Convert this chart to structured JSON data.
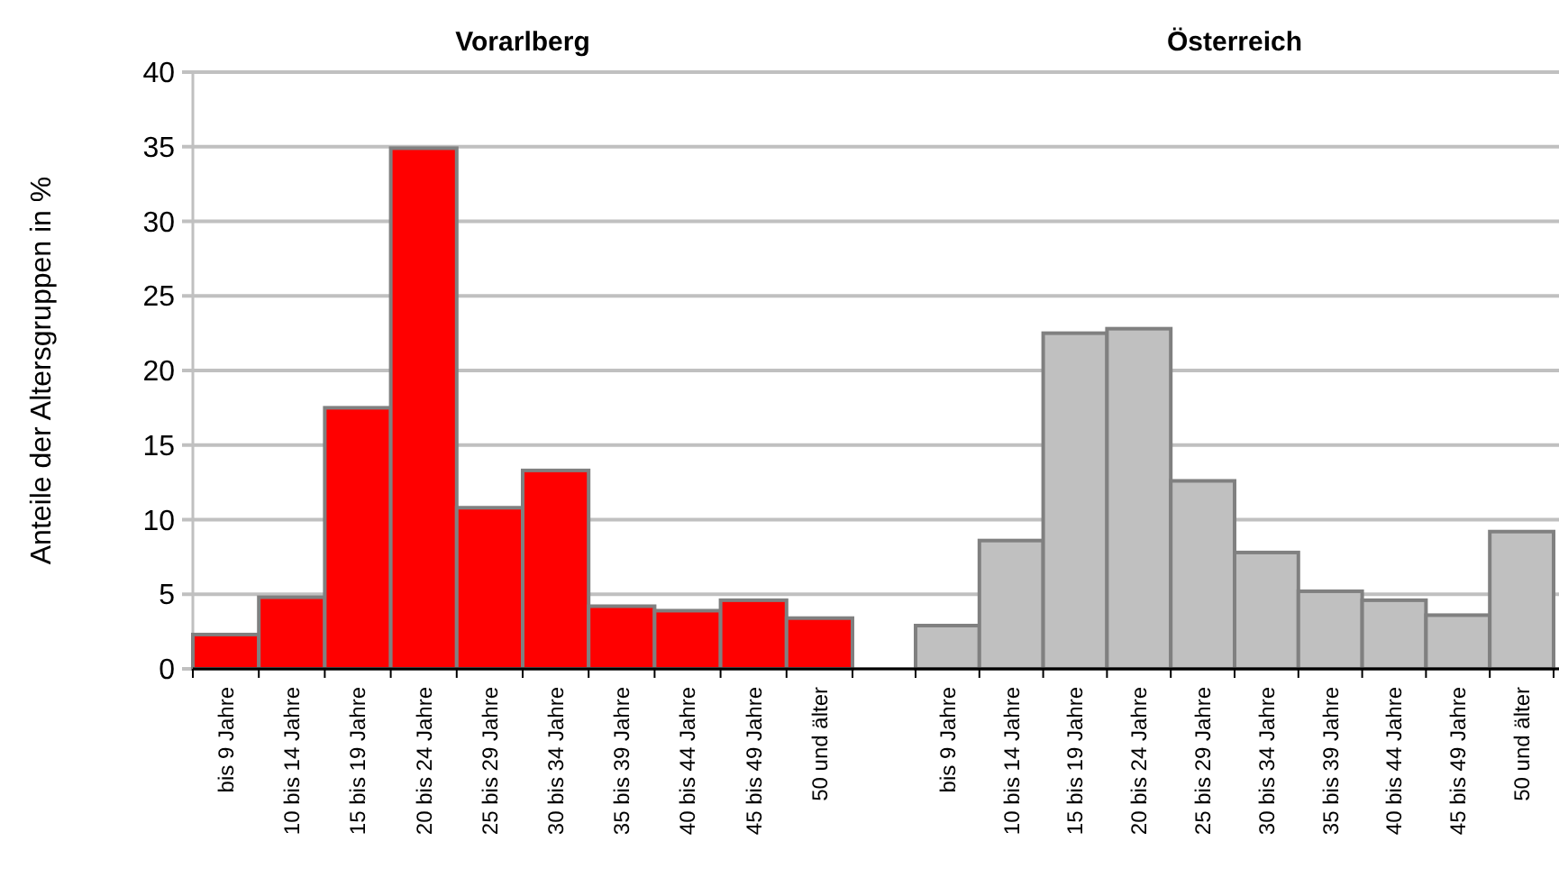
{
  "chart_data": [
    {
      "type": "bar",
      "title": "Vorarlberg",
      "ylabel": "Anteile der Altersgruppen in %",
      "categories": [
        "bis 9 Jahre",
        "10 bis 14 Jahre",
        "15 bis 19 Jahre",
        "20 bis 24 Jahre",
        "25 bis 29 Jahre",
        "30 bis 34 Jahre",
        "35 bis 39 Jahre",
        "40 bis 44 Jahre",
        "45 bis 49 Jahre",
        "50 und älter"
      ],
      "values": [
        2.3,
        4.8,
        17.5,
        34.9,
        10.8,
        13.3,
        4.2,
        3.9,
        4.6,
        3.4
      ],
      "color": "#ff0000",
      "ylim": [
        0,
        40
      ],
      "yticks": [
        0,
        5,
        10,
        15,
        20,
        25,
        30,
        35,
        40
      ],
      "grid": "y"
    },
    {
      "type": "bar",
      "title": "Österreich",
      "categories": [
        "bis 9 Jahre",
        "10 bis 14 Jahre",
        "15 bis 19 Jahre",
        "20 bis 24 Jahre",
        "25 bis 29 Jahre",
        "30 bis 34 Jahre",
        "35 bis 39 Jahre",
        "40 bis 44 Jahre",
        "45 bis 49 Jahre",
        "50 und älter"
      ],
      "values": [
        2.9,
        8.6,
        22.5,
        22.8,
        12.6,
        7.8,
        5.2,
        4.6,
        3.6,
        9.2
      ],
      "color": "#c0c0c0",
      "ylim": [
        0,
        40
      ],
      "yticks": [
        0,
        5,
        10,
        15,
        20,
        25,
        30,
        35,
        40
      ],
      "grid": "y",
      "tick_labels": "x"
    }
  ]
}
